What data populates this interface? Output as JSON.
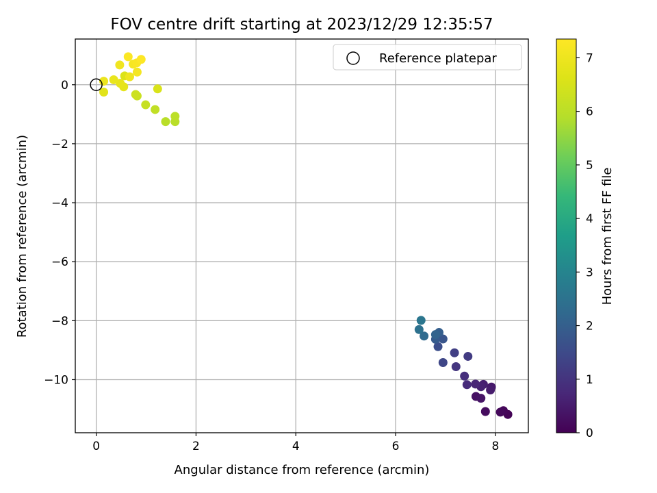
{
  "chart_data": {
    "type": "scatter",
    "title": "FOV centre drift starting at 2023/12/29 12:35:57",
    "xlabel": "Angular distance from reference (arcmin)",
    "ylabel": "Rotation from reference (arcmin)",
    "xlim": [
      -0.42,
      8.66
    ],
    "ylim": [
      -11.8,
      1.55
    ],
    "xticks": [
      0,
      2,
      4,
      6,
      8
    ],
    "xtick_labels": [
      "0",
      "2",
      "4",
      "6",
      "8"
    ],
    "yticks": [
      0,
      -2,
      -4,
      -6,
      -8,
      -10
    ],
    "ytick_labels": [
      "0",
      "−2",
      "−4",
      "−6",
      "−8",
      "−10"
    ],
    "grid": true,
    "legend": {
      "placement": "top-right",
      "entries": [
        "Reference platepar"
      ]
    },
    "reference_point": {
      "x": 0,
      "y": 0,
      "marker": "open-circle"
    },
    "colorbar": {
      "label": "Hours from first FF file",
      "colormap": "viridis",
      "range": [
        0,
        7.35
      ],
      "ticks": [
        0,
        1,
        2,
        3,
        4,
        5,
        6,
        7
      ],
      "tick_labels": [
        "0",
        "1",
        "2",
        "3",
        "4",
        "5",
        "6",
        "7"
      ]
    },
    "points": [
      {
        "x": 8.25,
        "y": -11.18,
        "c": 0.05
      },
      {
        "x": 8.16,
        "y": -11.05,
        "c": 0.1
      },
      {
        "x": 8.1,
        "y": -11.1,
        "c": 0.15
      },
      {
        "x": 7.8,
        "y": -11.08,
        "c": 0.2
      },
      {
        "x": 7.61,
        "y": -10.57,
        "c": 0.3
      },
      {
        "x": 7.71,
        "y": -10.63,
        "c": 0.35
      },
      {
        "x": 7.92,
        "y": -10.25,
        "c": 0.45
      },
      {
        "x": 7.9,
        "y": -10.35,
        "c": 0.5
      },
      {
        "x": 7.76,
        "y": -10.16,
        "c": 0.55
      },
      {
        "x": 7.71,
        "y": -10.24,
        "c": 0.6
      },
      {
        "x": 7.6,
        "y": -10.15,
        "c": 0.7
      },
      {
        "x": 7.43,
        "y": -10.17,
        "c": 0.8
      },
      {
        "x": 7.38,
        "y": -9.88,
        "c": 0.9
      },
      {
        "x": 7.21,
        "y": -9.56,
        "c": 1.05
      },
      {
        "x": 7.45,
        "y": -9.21,
        "c": 1.15
      },
      {
        "x": 7.18,
        "y": -9.09,
        "c": 1.25
      },
      {
        "x": 6.95,
        "y": -9.42,
        "c": 1.4
      },
      {
        "x": 6.85,
        "y": -8.88,
        "c": 1.6
      },
      {
        "x": 6.95,
        "y": -8.62,
        "c": 1.75
      },
      {
        "x": 6.8,
        "y": -8.63,
        "c": 1.9
      },
      {
        "x": 6.87,
        "y": -8.4,
        "c": 2.0
      },
      {
        "x": 6.8,
        "y": -8.47,
        "c": 2.1
      },
      {
        "x": 6.57,
        "y": -8.52,
        "c": 2.3
      },
      {
        "x": 6.47,
        "y": -8.3,
        "c": 2.45
      },
      {
        "x": 6.51,
        "y": -7.99,
        "c": 2.6
      },
      {
        "x": 1.58,
        "y": -1.25,
        "c": 5.95
      },
      {
        "x": 1.39,
        "y": -1.25,
        "c": 5.95
      },
      {
        "x": 1.58,
        "y": -1.07,
        "c": 6.0
      },
      {
        "x": 1.18,
        "y": -0.84,
        "c": 6.1
      },
      {
        "x": 0.99,
        "y": -0.68,
        "c": 6.2
      },
      {
        "x": 0.82,
        "y": -0.38,
        "c": 6.25
      },
      {
        "x": 0.79,
        "y": -0.33,
        "c": 6.3
      },
      {
        "x": 1.23,
        "y": -0.14,
        "c": 6.55
      },
      {
        "x": 0.57,
        "y": 0.3,
        "c": 6.6
      },
      {
        "x": 0.15,
        "y": -0.25,
        "c": 6.7
      },
      {
        "x": 0.55,
        "y": -0.07,
        "c": 6.8
      },
      {
        "x": 0.48,
        "y": 0.05,
        "c": 6.85
      },
      {
        "x": 0.35,
        "y": 0.17,
        "c": 6.9
      },
      {
        "x": 0.15,
        "y": 0.12,
        "c": 6.95
      },
      {
        "x": 0.67,
        "y": 0.27,
        "c": 7.0
      },
      {
        "x": 0.47,
        "y": 0.67,
        "c": 7.05
      },
      {
        "x": 0.82,
        "y": 0.43,
        "c": 7.15
      },
      {
        "x": 0.74,
        "y": 0.7,
        "c": 7.2
      },
      {
        "x": 0.81,
        "y": 0.74,
        "c": 7.25
      },
      {
        "x": 0.64,
        "y": 0.95,
        "c": 7.3
      },
      {
        "x": 0.9,
        "y": 0.86,
        "c": 7.35
      }
    ]
  }
}
